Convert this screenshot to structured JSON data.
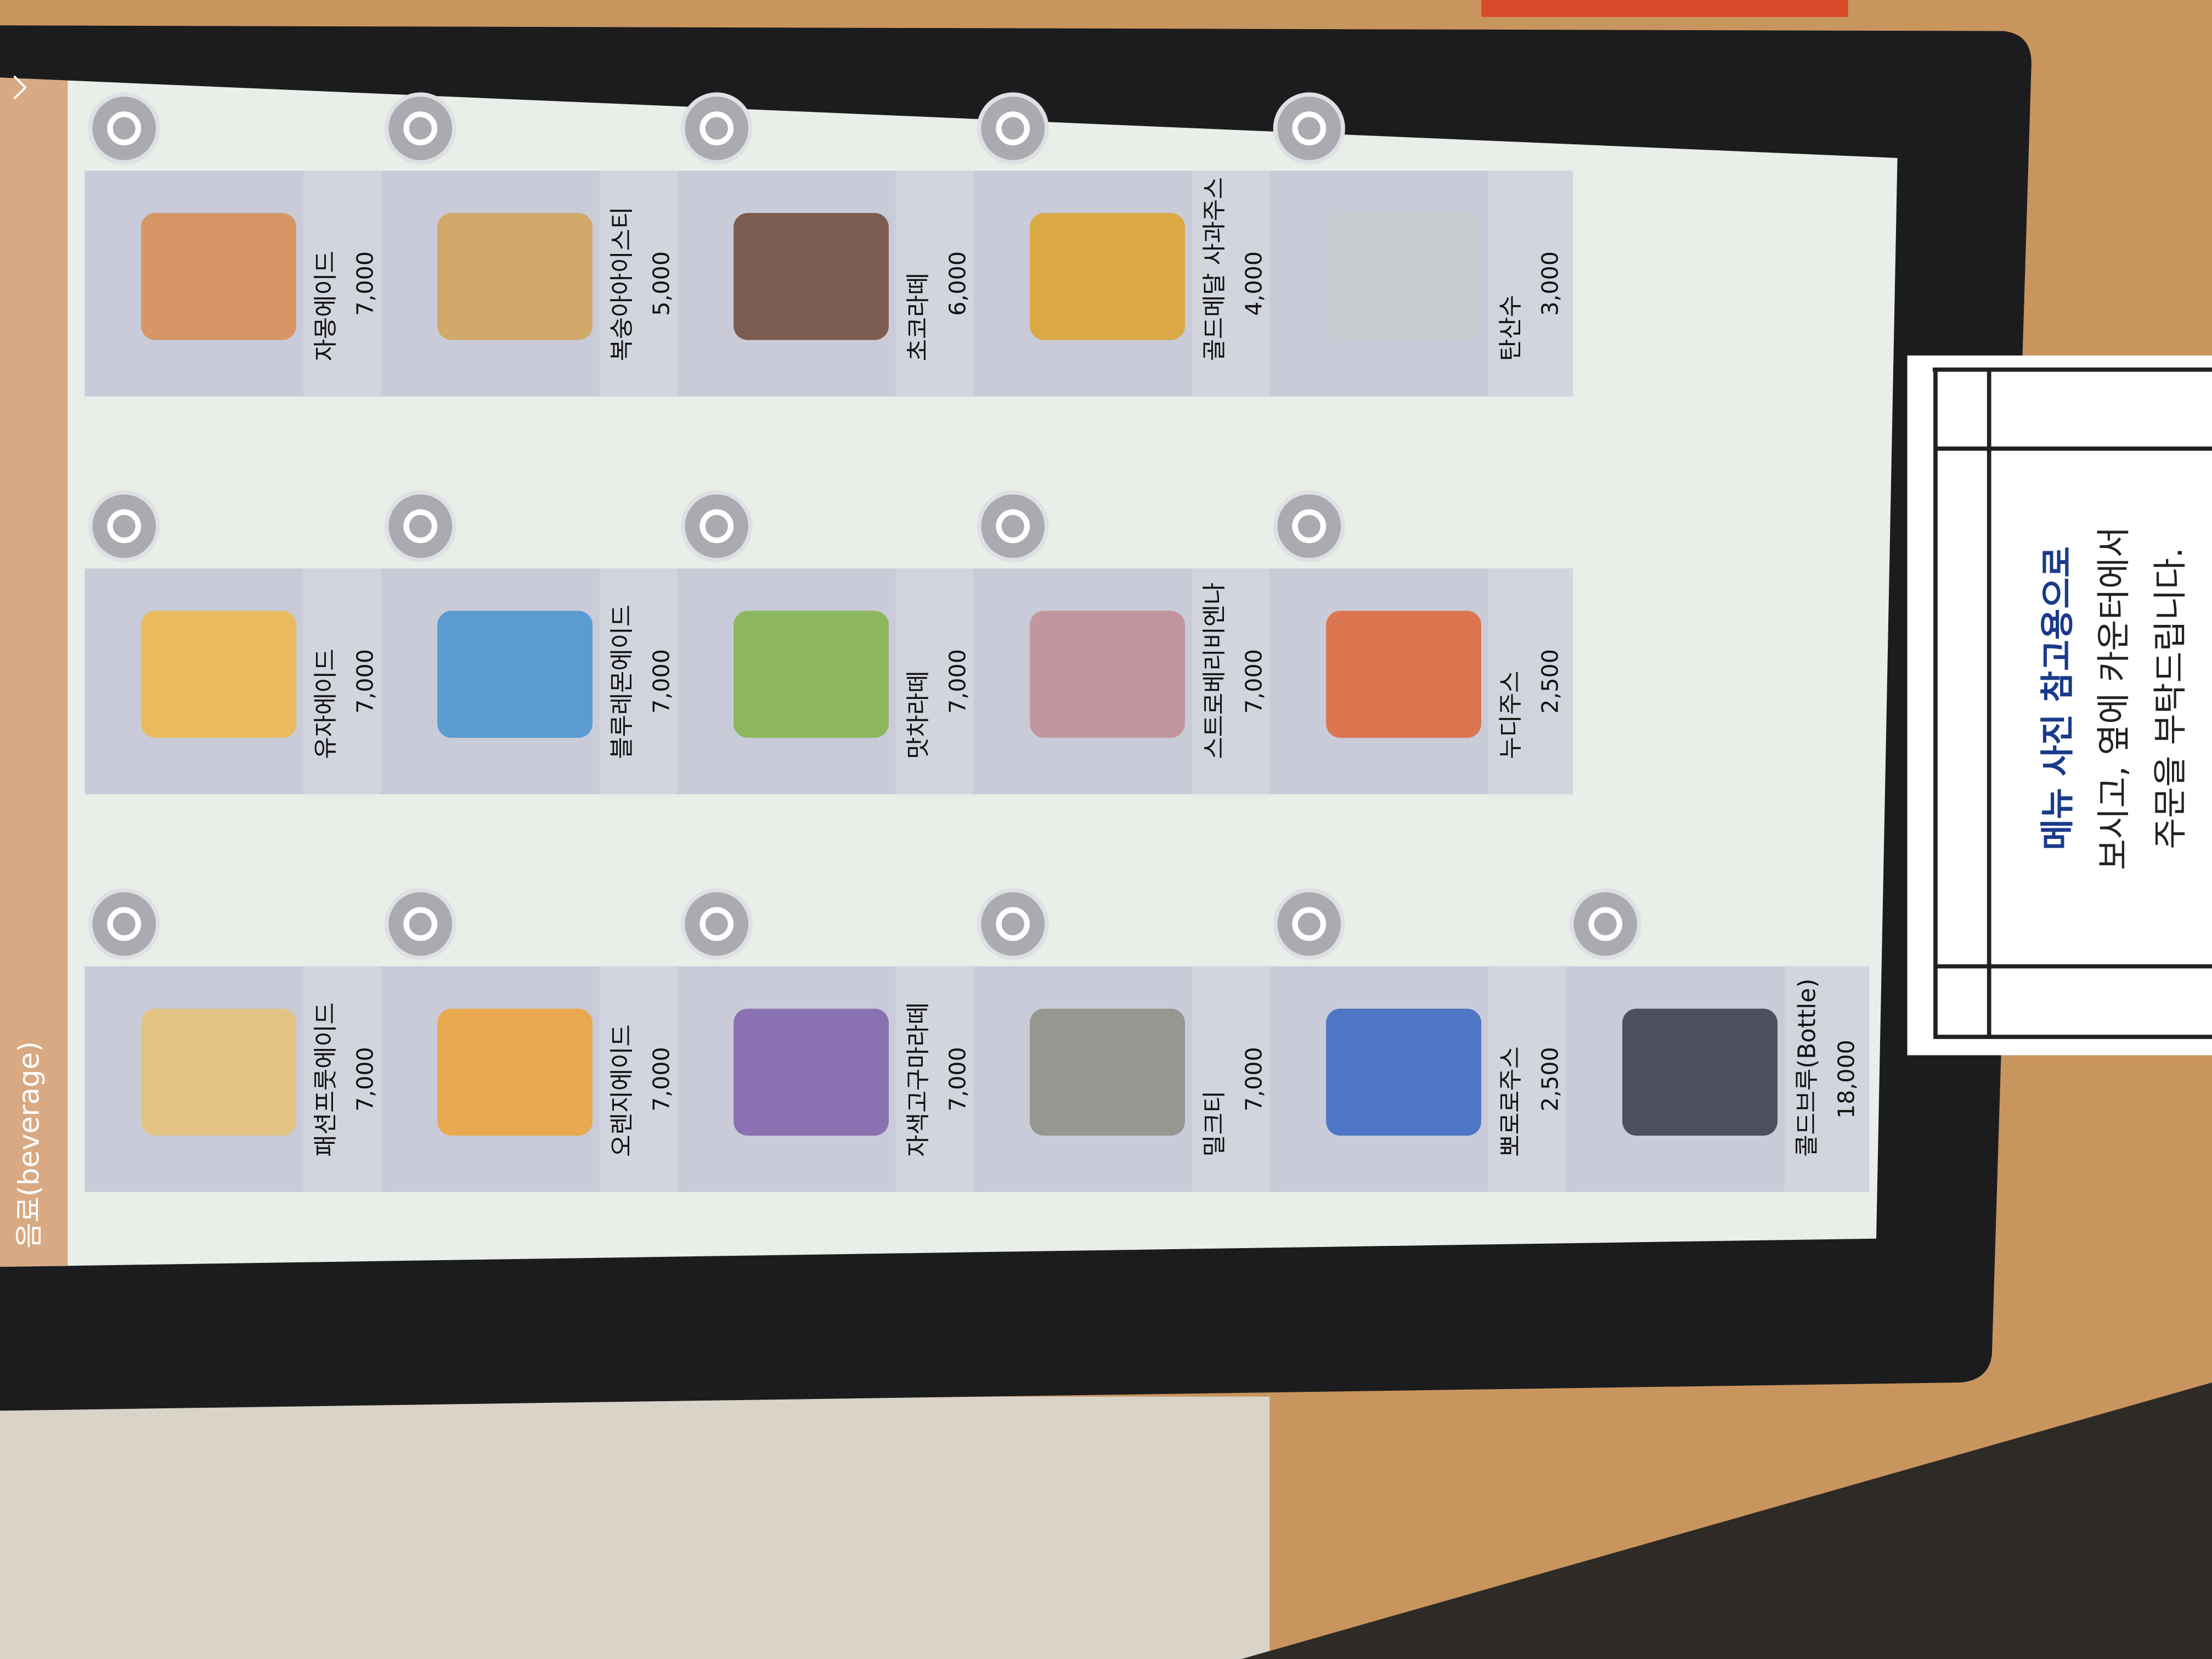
{
  "screen": {
    "header": "음료(beverage)",
    "items": [
      {
        "name": "패션프룻에이드",
        "price": "7,000"
      },
      {
        "name": "유자에이드",
        "price": "7,000"
      },
      {
        "name": "자몽에이드",
        "price": "7,000"
      },
      {
        "name": "오렌지에이드",
        "price": "7,000"
      },
      {
        "name": "블루레몬에이드",
        "price": "7,000"
      },
      {
        "name": "복숭아아이스티",
        "price": "5,000"
      },
      {
        "name": "자색고구마라떼",
        "price": "7,000"
      },
      {
        "name": "맛차라떼",
        "price": "7,000"
      },
      {
        "name": "초코라떼",
        "price": "6,000"
      },
      {
        "name": "밀크티",
        "price": "7,000"
      },
      {
        "name": "스트로베리비엔나",
        "price": "7,000"
      },
      {
        "name": "골드메달 사과주스",
        "price": "4,000"
      },
      {
        "name": "뽀로로주스",
        "price": "2,500"
      },
      {
        "name": "누디주스",
        "price": "2,500"
      },
      {
        "name": "탄산수",
        "price": "3,000"
      },
      {
        "name": "콜드브루(Bottle)",
        "price": "18,000"
      }
    ]
  },
  "sign": {
    "lines": [
      "메뉴 사진 참고용으로",
      "보시고, 옆에 카운터에서",
      "주문을 부탁드립니다."
    ]
  }
}
